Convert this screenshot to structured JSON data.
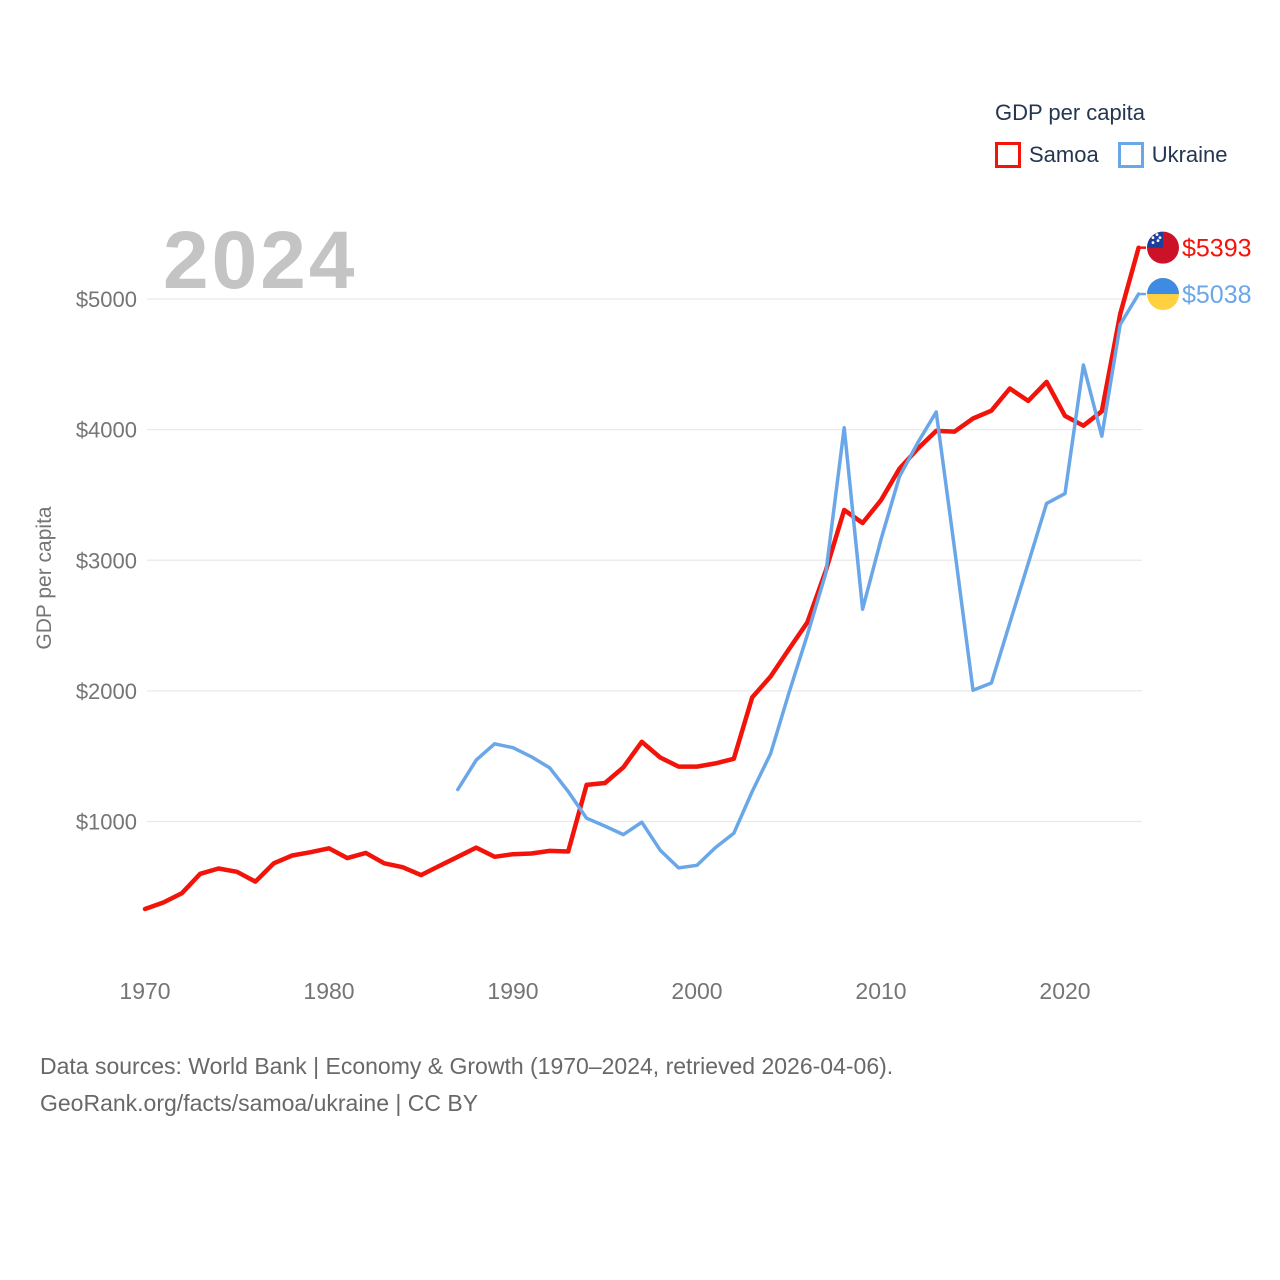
{
  "watermark": "2024",
  "legend": {
    "title": "GDP per capita",
    "items": [
      {
        "label": "Samoa",
        "color": "#f2140a"
      },
      {
        "label": "Ukraine",
        "color": "#6aa7e8"
      }
    ]
  },
  "footer": {
    "line1": "Data sources: World Bank | Economy & Growth (1970–2024, retrieved 2026-04-06).",
    "line2": "GeoRank.org/facts/samoa/ukraine | CC BY"
  },
  "chart_data": {
    "type": "line",
    "title": "GDP per capita",
    "xlabel": "",
    "ylabel": "GDP per capita",
    "grid": "horizontal",
    "legend_position": "top-right",
    "xlim": [
      1970,
      2024
    ],
    "ylim": [
      0,
      5500
    ],
    "x_ticks": [
      1970,
      1980,
      1990,
      2000,
      2010,
      2020
    ],
    "y_ticks": [
      {
        "value": 5000,
        "label": "$5000"
      },
      {
        "value": 4000,
        "label": "$4000"
      },
      {
        "value": 3000,
        "label": "$3000"
      },
      {
        "value": 2000,
        "label": "$2000"
      },
      {
        "value": 1000,
        "label": "$1000"
      }
    ],
    "series": [
      {
        "name": "Samoa",
        "color": "#f2140a",
        "flag": "samoa",
        "end_label": "$5393",
        "end_value": 5393,
        "start_year": 1970,
        "values": [
          330,
          380,
          450,
          600,
          640,
          615,
          540,
          680,
          740,
          765,
          795,
          720,
          760,
          680,
          650,
          590,
          660,
          730,
          800,
          730,
          750,
          755,
          775,
          770,
          1280,
          1295,
          1415,
          1610,
          1490,
          1420,
          1420,
          1445,
          1480,
          1950,
          2110,
          2320,
          2525,
          2920,
          3385,
          3285,
          3460,
          3700,
          3855,
          3990,
          3985,
          4085,
          4145,
          4315,
          4220,
          4365,
          4105,
          4030,
          4140,
          4885,
          5393
        ]
      },
      {
        "name": "Ukraine",
        "color": "#6aa7e8",
        "flag": "ukraine",
        "end_label": "$5038",
        "end_value": 5038,
        "start_year": 1987,
        "values": [
          1245,
          1470,
          1595,
          1565,
          1495,
          1410,
          1230,
          1025,
          965,
          900,
          995,
          780,
          645,
          665,
          800,
          910,
          1230,
          1520,
          1985,
          2430,
          2900,
          4015,
          2625,
          3160,
          3640,
          3900,
          4135,
          3085,
          2005,
          2060,
          2520,
          2975,
          3435,
          3510,
          4495,
          3950,
          4805,
          5038
        ]
      }
    ]
  }
}
